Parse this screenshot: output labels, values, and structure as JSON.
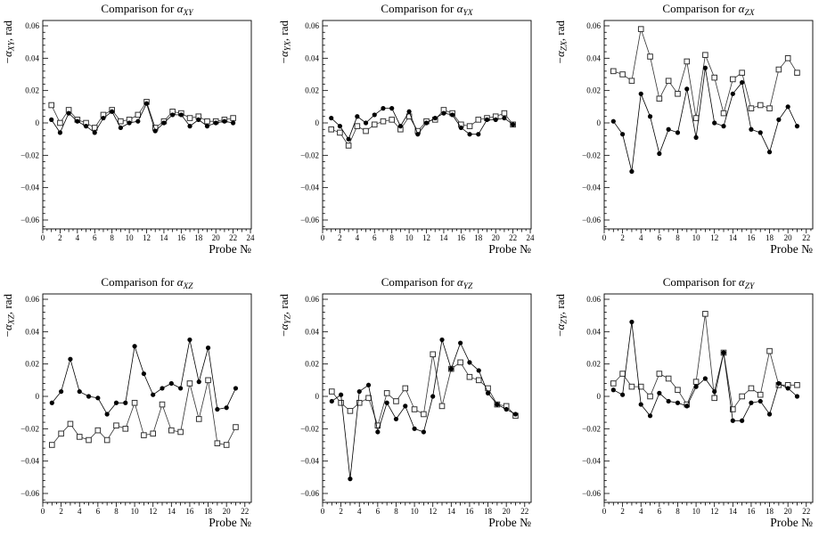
{
  "page": {
    "background": "#ffffff",
    "text_color": "#000000",
    "axis_color": "#000000"
  },
  "chart_data": [
    {
      "type": "line",
      "title": "Comparison for α_XY",
      "title_prefix": "Comparison for ",
      "title_symbol": "α",
      "title_sub": "XY",
      "ylabel": "−α_XY, rad",
      "ylabel_minus": "−",
      "ylabel_symbol": "α",
      "ylabel_sub": "XY",
      "ylabel_suffix": ", rad",
      "xlabel": "Probe №",
      "xlim": [
        0,
        24.1
      ],
      "ylim": [
        -0.066,
        0.066
      ],
      "xticks": [
        0,
        2,
        4,
        6,
        8,
        10,
        12,
        14,
        16,
        18,
        20,
        22,
        24
      ],
      "yticks": [
        -0.06,
        -0.04,
        -0.02,
        0,
        0.02,
        0.04,
        0.06
      ],
      "grid": false,
      "legend": "none",
      "x": [
        1,
        2,
        3,
        4,
        5,
        6,
        7,
        8,
        9,
        10,
        11,
        12,
        13,
        14,
        15,
        16,
        17,
        18,
        19,
        20,
        21,
        22
      ],
      "series": [
        {
          "name": "open-squares",
          "marker": "open-square",
          "color": "#333333",
          "values": [
            0.011,
            0.0,
            0.008,
            0.002,
            0.0,
            -0.003,
            0.005,
            0.008,
            0.001,
            0.002,
            0.005,
            0.013,
            -0.003,
            0.001,
            0.007,
            0.006,
            0.003,
            0.004,
            0.001,
            0.001,
            0.002,
            0.003
          ]
        },
        {
          "name": "filled-circles",
          "marker": "filled-circle",
          "color": "#000000",
          "values": [
            0.002,
            -0.006,
            0.006,
            0.001,
            -0.002,
            -0.006,
            0.003,
            0.007,
            -0.003,
            0.0,
            0.001,
            0.012,
            -0.005,
            0.0,
            0.005,
            0.005,
            -0.002,
            0.002,
            -0.002,
            0.0,
            0.001,
            0.0
          ]
        }
      ]
    },
    {
      "type": "line",
      "title": "Comparison for α_YX",
      "title_prefix": "Comparison for ",
      "title_symbol": "α",
      "title_sub": "YX",
      "ylabel": "−α_YX, rad",
      "ylabel_minus": "−",
      "ylabel_symbol": "α",
      "ylabel_sub": "YX",
      "ylabel_suffix": ", rad",
      "xlabel": "Probe №",
      "xlim": [
        0,
        24.1
      ],
      "ylim": [
        -0.066,
        0.066
      ],
      "xticks": [
        0,
        2,
        4,
        6,
        8,
        10,
        12,
        14,
        16,
        18,
        20,
        22,
        24
      ],
      "yticks": [
        -0.06,
        -0.04,
        -0.02,
        0,
        0.02,
        0.04,
        0.06
      ],
      "grid": false,
      "legend": "none",
      "x": [
        1,
        2,
        3,
        4,
        5,
        6,
        7,
        8,
        9,
        10,
        11,
        12,
        13,
        14,
        15,
        16,
        17,
        18,
        19,
        20,
        21,
        22
      ],
      "series": [
        {
          "name": "open-squares",
          "marker": "open-square",
          "color": "#333333",
          "values": [
            -0.004,
            -0.006,
            -0.014,
            -0.002,
            -0.005,
            -0.001,
            0.001,
            0.002,
            -0.004,
            0.004,
            -0.005,
            0.001,
            0.002,
            0.008,
            0.006,
            -0.001,
            -0.002,
            0.002,
            0.003,
            0.004,
            0.006,
            -0.001
          ]
        },
        {
          "name": "filled-circles",
          "marker": "filled-circle",
          "color": "#000000",
          "values": [
            0.003,
            -0.002,
            -0.01,
            0.004,
            0.0,
            0.005,
            0.009,
            0.009,
            -0.002,
            0.007,
            -0.007,
            0.0,
            0.003,
            0.006,
            0.005,
            -0.003,
            -0.007,
            -0.007,
            0.002,
            0.002,
            0.003,
            -0.001
          ]
        }
      ]
    },
    {
      "type": "line",
      "title": "Comparison for α_ZX",
      "title_prefix": "Comparison for ",
      "title_symbol": "α",
      "title_sub": "ZX",
      "ylabel": "−α_ZX, rad",
      "ylabel_minus": "−",
      "ylabel_symbol": "α",
      "ylabel_sub": "ZX",
      "ylabel_suffix": ", rad",
      "xlabel": "Probe №",
      "xlim": [
        0,
        22.7
      ],
      "ylim": [
        -0.066,
        0.066
      ],
      "xticks": [
        0,
        2,
        4,
        6,
        8,
        10,
        12,
        14,
        16,
        18,
        20,
        22
      ],
      "yticks": [
        -0.06,
        -0.04,
        -0.02,
        0,
        0.02,
        0.04,
        0.06
      ],
      "grid": false,
      "legend": "none",
      "x": [
        1,
        2,
        3,
        4,
        5,
        6,
        7,
        8,
        9,
        10,
        11,
        12,
        13,
        14,
        15,
        16,
        17,
        18,
        19,
        20,
        21
      ],
      "series": [
        {
          "name": "open-squares",
          "marker": "open-square",
          "color": "#333333",
          "values": [
            0.032,
            0.03,
            0.026,
            0.058,
            0.041,
            0.015,
            0.026,
            0.018,
            0.038,
            0.003,
            0.042,
            0.028,
            0.006,
            0.027,
            0.031,
            0.009,
            0.011,
            0.009,
            0.033,
            0.04,
            0.031
          ]
        },
        {
          "name": "filled-circles",
          "marker": "filled-circle",
          "color": "#000000",
          "values": [
            0.001,
            -0.007,
            -0.03,
            0.018,
            0.004,
            -0.019,
            -0.004,
            -0.006,
            0.021,
            -0.009,
            0.034,
            0.0,
            -0.002,
            0.018,
            0.025,
            -0.004,
            -0.006,
            -0.018,
            0.002,
            0.01,
            -0.002
          ]
        }
      ]
    },
    {
      "type": "line",
      "title": "Comparison for α_XZ",
      "title_prefix": "Comparison for ",
      "title_symbol": "α",
      "title_sub": "XZ",
      "ylabel": "−α_XZ, rad",
      "ylabel_minus": "−",
      "ylabel_symbol": "α",
      "ylabel_sub": "XZ",
      "ylabel_suffix": ", rad",
      "xlabel": "Probe №",
      "xlim": [
        0,
        22.7
      ],
      "ylim": [
        -0.066,
        0.066
      ],
      "xticks": [
        0,
        2,
        4,
        6,
        8,
        10,
        12,
        14,
        16,
        18,
        20,
        22
      ],
      "yticks": [
        -0.06,
        -0.04,
        -0.02,
        0,
        0.02,
        0.04,
        0.06
      ],
      "grid": false,
      "legend": "none",
      "x": [
        1,
        2,
        3,
        4,
        5,
        6,
        7,
        8,
        9,
        10,
        11,
        12,
        13,
        14,
        15,
        16,
        17,
        18,
        19,
        20,
        21
      ],
      "series": [
        {
          "name": "open-squares",
          "marker": "open-square",
          "color": "#333333",
          "values": [
            -0.03,
            -0.023,
            -0.017,
            -0.025,
            -0.027,
            -0.021,
            -0.027,
            -0.018,
            -0.02,
            -0.004,
            -0.024,
            -0.023,
            -0.005,
            -0.021,
            -0.022,
            0.008,
            -0.014,
            0.01,
            -0.029,
            -0.03,
            -0.019
          ]
        },
        {
          "name": "filled-circles",
          "marker": "filled-circle",
          "color": "#000000",
          "values": [
            -0.004,
            0.003,
            0.023,
            0.003,
            0.0,
            -0.001,
            -0.011,
            -0.004,
            -0.004,
            0.031,
            0.014,
            0.001,
            0.005,
            0.008,
            0.005,
            0.035,
            0.009,
            0.03,
            -0.008,
            -0.007,
            0.005
          ]
        }
      ]
    },
    {
      "type": "line",
      "title": "Comparison for α_YZ",
      "title_prefix": "Comparison for ",
      "title_symbol": "α",
      "title_sub": "YZ",
      "ylabel": "−α_YZ, rad",
      "ylabel_minus": "−",
      "ylabel_symbol": "α",
      "ylabel_sub": "YZ",
      "ylabel_suffix": ", rad",
      "xlabel": "Probe №",
      "xlim": [
        0,
        22.7
      ],
      "ylim": [
        -0.066,
        0.066
      ],
      "xticks": [
        0,
        2,
        4,
        6,
        8,
        10,
        12,
        14,
        16,
        18,
        20,
        22
      ],
      "yticks": [
        -0.06,
        -0.04,
        -0.02,
        0,
        0.02,
        0.04,
        0.06
      ],
      "grid": false,
      "legend": "none",
      "x": [
        1,
        2,
        3,
        4,
        5,
        6,
        7,
        8,
        9,
        10,
        11,
        12,
        13,
        14,
        15,
        16,
        17,
        18,
        19,
        20,
        21
      ],
      "series": [
        {
          "name": "open-squares",
          "marker": "open-square",
          "color": "#333333",
          "values": [
            0.003,
            -0.004,
            -0.009,
            -0.004,
            -0.001,
            -0.018,
            0.002,
            -0.003,
            0.005,
            -0.008,
            -0.011,
            0.026,
            -0.006,
            0.017,
            0.021,
            0.012,
            0.01,
            0.005,
            -0.005,
            -0.006,
            -0.012
          ]
        },
        {
          "name": "filled-circles",
          "marker": "filled-circle",
          "color": "#000000",
          "values": [
            -0.003,
            0.001,
            -0.051,
            0.003,
            0.007,
            -0.022,
            -0.004,
            -0.014,
            -0.006,
            -0.02,
            -0.022,
            0.0,
            0.035,
            0.017,
            0.033,
            0.021,
            0.016,
            0.002,
            -0.005,
            -0.008,
            -0.011
          ]
        }
      ]
    },
    {
      "type": "line",
      "title": "Comparison for α_ZY",
      "title_prefix": "Comparison for ",
      "title_symbol": "α",
      "title_sub": "ZY",
      "ylabel": "−α_ZY, rad",
      "ylabel_minus": "−",
      "ylabel_symbol": "α",
      "ylabel_sub": "ZY",
      "ylabel_suffix": ", rad",
      "xlabel": "Probe №",
      "xlim": [
        0,
        22.7
      ],
      "ylim": [
        -0.066,
        0.066
      ],
      "xticks": [
        0,
        2,
        4,
        6,
        8,
        10,
        12,
        14,
        16,
        18,
        20,
        22
      ],
      "yticks": [
        -0.06,
        -0.04,
        -0.02,
        0,
        0.02,
        0.04,
        0.06
      ],
      "grid": false,
      "legend": "none",
      "x": [
        1,
        2,
        3,
        4,
        5,
        6,
        7,
        8,
        9,
        10,
        11,
        12,
        13,
        14,
        15,
        16,
        17,
        18,
        19,
        20,
        21
      ],
      "series": [
        {
          "name": "open-squares",
          "marker": "open-square",
          "color": "#333333",
          "values": [
            0.008,
            0.014,
            0.006,
            0.006,
            0.0,
            0.014,
            0.011,
            0.004,
            -0.005,
            0.009,
            0.051,
            -0.001,
            0.027,
            -0.008,
            0.0,
            0.005,
            0.001,
            0.028,
            0.007,
            0.007,
            0.007
          ]
        },
        {
          "name": "filled-circles",
          "marker": "filled-circle",
          "color": "#000000",
          "values": [
            0.004,
            0.001,
            0.046,
            -0.005,
            -0.012,
            0.002,
            -0.003,
            -0.004,
            -0.006,
            0.006,
            0.011,
            0.003,
            0.027,
            -0.015,
            -0.015,
            -0.004,
            -0.003,
            -0.011,
            0.008,
            0.005,
            0.0
          ]
        }
      ]
    }
  ]
}
